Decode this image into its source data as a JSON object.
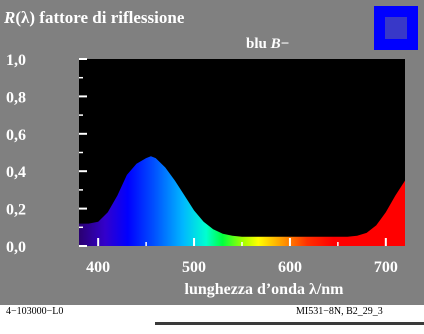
{
  "chart_data": {
    "type": "area",
    "title_r": "R",
    "title_lambda": "(λ)",
    "title_rest": " fattore di riflessione",
    "subtitle_main": "blu ",
    "subtitle_b": "B",
    "subtitle_suffix": "−",
    "xlabel": "lunghezza d’onda λ/nm",
    "xlim": [
      380,
      720
    ],
    "ylim": [
      0,
      1.0
    ],
    "x_ticks": [
      400,
      500,
      600,
      700
    ],
    "x_tick_labels": [
      "400",
      "500",
      "600",
      "700"
    ],
    "y_ticks": [
      0,
      0.2,
      0.4,
      0.6,
      0.8,
      1.0
    ],
    "y_tick_labels": [
      "0,0",
      "0,2",
      "0,4",
      "0,6",
      "0,8",
      "1,0"
    ],
    "swatch_color": "#3838c8",
    "swatch_border": "#0000ff",
    "series": [
      {
        "x": [
          380,
          390,
          400,
          410,
          420,
          430,
          440,
          450,
          455,
          460,
          470,
          480,
          490,
          500,
          510,
          520,
          530,
          540,
          550,
          560,
          570,
          580,
          590,
          600,
          610,
          620,
          630,
          640,
          650,
          660,
          670,
          680,
          690,
          700,
          710,
          720
        ],
        "values": [
          0.12,
          0.12,
          0.13,
          0.18,
          0.27,
          0.38,
          0.44,
          0.47,
          0.48,
          0.47,
          0.42,
          0.35,
          0.27,
          0.19,
          0.13,
          0.09,
          0.065,
          0.055,
          0.05,
          0.05,
          0.05,
          0.05,
          0.05,
          0.05,
          0.05,
          0.05,
          0.05,
          0.05,
          0.05,
          0.05,
          0.055,
          0.07,
          0.11,
          0.18,
          0.27,
          0.35
        ]
      }
    ]
  },
  "footer": {
    "left": "4−103000−L0",
    "right": "MI531−8N, B2_29_3"
  }
}
